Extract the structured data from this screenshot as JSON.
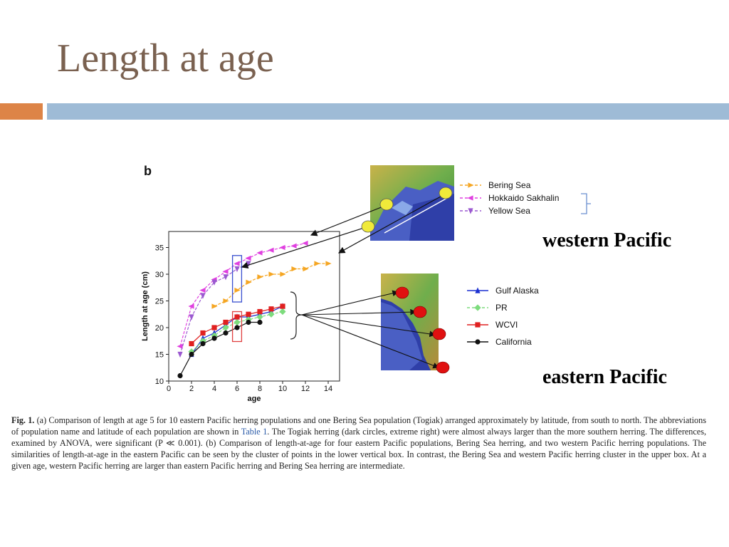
{
  "slide": {
    "title": "Length at age",
    "panel_letter": "b",
    "western_label": "western Pacific",
    "eastern_label": "eastern Pacific"
  },
  "colors": {
    "title": "#7a6150",
    "accent_orange": "#dd8447",
    "accent_blue": "#9ebbd6",
    "bering": "#f5a623",
    "hokkaido": "#e040e0",
    "yellow_sea": "#9b59d0",
    "gulf_alaska": "#1a2fd0",
    "pr": "#7ddc7d",
    "wcvi": "#e02020",
    "california": "#111111"
  },
  "legend_west": [
    "Bering Sea",
    "Hokkaido Sakhalin",
    "Yellow Sea"
  ],
  "legend_east": [
    "Gulf Alaska",
    "PR",
    "WCVI",
    "California"
  ],
  "caption": {
    "fig": "Fig. 1.",
    "text_a": " (a) Comparison of length at age 5 for 10 eastern Pacific herring populations and one Bering Sea population (Togiak) arranged approximately by latitude, from south to north. The abbreviations of population name and latitude of each population are shown in ",
    "ref": "Table 1",
    "text_b": ". The Togiak herring (dark circles, extreme right) were almost always larger than the more southern herring. The differences, examined by ANOVA, were significant (P ≪ 0.001). (b) Comparison of length-at-age for four eastern Pacific populations, Bering Sea herring, and two western Pacific herring populations. The similarities of length-at-age in the eastern Pacific can be seen by the cluster of points in the lower vertical box. In contrast, the Bering Sea and western Pacific herring cluster in the upper box. At a given age, western Pacific herring are larger than eastern Pacific herring and Bering Sea herring are intermediate."
  },
  "chart_data": {
    "type": "line",
    "xlabel": "age",
    "ylabel": "Length at age (cm)",
    "xlim": [
      0,
      15
    ],
    "ylim": [
      10,
      38
    ],
    "xticks": [
      0,
      2,
      4,
      6,
      8,
      10,
      12,
      14
    ],
    "yticks": [
      10,
      15,
      20,
      25,
      30,
      35
    ],
    "series": [
      {
        "name": "Bering Sea",
        "marker": "triangle-right",
        "color": "#f5a623",
        "dash": true,
        "x": [
          4,
          5,
          6,
          7,
          8,
          9,
          10,
          11,
          12,
          13,
          14
        ],
        "y": [
          24,
          25,
          27,
          28.5,
          29.5,
          30,
          30,
          31,
          31,
          32,
          32
        ]
      },
      {
        "name": "Hokkaido Sakhalin",
        "marker": "triangle-left",
        "color": "#e040e0",
        "dash": true,
        "x": [
          1,
          2,
          3,
          4,
          5,
          6,
          7,
          8,
          9,
          10,
          11,
          12
        ],
        "y": [
          16.5,
          24,
          27,
          29,
          30.5,
          32,
          33,
          34,
          34.5,
          35,
          35.3,
          35.8
        ]
      },
      {
        "name": "Yellow Sea",
        "marker": "triangle-down",
        "color": "#9b59d0",
        "dash": true,
        "x": [
          1,
          2,
          3,
          4,
          5,
          6,
          7
        ],
        "y": [
          15,
          22,
          26,
          28.5,
          29.5,
          31,
          32
        ]
      },
      {
        "name": "Gulf Alaska",
        "marker": "triangle-up",
        "color": "#1a2fd0",
        "dash": false,
        "x": [
          2,
          3,
          4,
          5,
          6,
          7,
          8,
          9,
          10
        ],
        "y": [
          15,
          18,
          19,
          20.5,
          22,
          22,
          22.5,
          23,
          24
        ]
      },
      {
        "name": "PR",
        "marker": "diamond",
        "color": "#7ddc7d",
        "dash": true,
        "x": [
          2,
          3,
          4,
          5,
          6,
          7,
          8,
          9,
          10
        ],
        "y": [
          15.5,
          17.5,
          18.5,
          20,
          21,
          21.5,
          22,
          22.5,
          23
        ]
      },
      {
        "name": "WCVI",
        "marker": "square",
        "color": "#e02020",
        "dash": false,
        "x": [
          2,
          3,
          4,
          5,
          6,
          7,
          8,
          9,
          10
        ],
        "y": [
          17,
          19,
          20,
          21,
          22,
          22.5,
          23,
          23.5,
          24
        ]
      },
      {
        "name": "California",
        "marker": "circle",
        "color": "#111111",
        "dash": false,
        "x": [
          1,
          2,
          3,
          4,
          5,
          6,
          7,
          8
        ],
        "y": [
          11,
          15,
          17,
          18,
          19,
          20,
          21,
          21
        ]
      }
    ]
  }
}
